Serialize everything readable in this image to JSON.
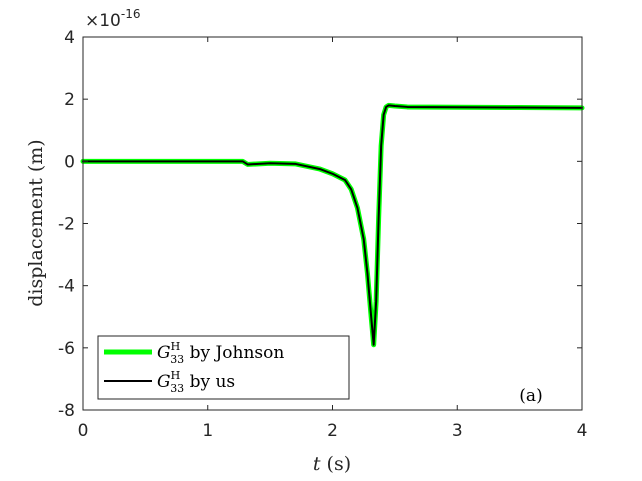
{
  "chart_data": {
    "type": "line",
    "xlabel_var": "t",
    "xlabel_unit": " (s)",
    "ylabel": "displacement (m)",
    "y_exponent_prefix": "×10",
    "y_exponent_power": "-16",
    "xlim": [
      0,
      4
    ],
    "ylim": [
      -8,
      4
    ],
    "x_ticks": [
      0,
      1,
      2,
      3,
      4
    ],
    "x_tick_labels": [
      "0",
      "1",
      "2",
      "3",
      "4"
    ],
    "y_ticks": [
      -8,
      -6,
      -4,
      -2,
      0,
      2,
      4
    ],
    "y_tick_labels": [
      "-8",
      "-6",
      "-4",
      "-2",
      "0",
      "2",
      "4"
    ],
    "grid": false,
    "legend_position": "bottom-left",
    "panel_label": "(a)",
    "series": [
      {
        "legend_symbol": "G",
        "legend_superscript": "H",
        "legend_subscript": "33",
        "legend_suffix": " by Johnson",
        "color": "#00ff00",
        "x": [
          0,
          0.5,
          1.0,
          1.28,
          1.32,
          1.5,
          1.7,
          1.9,
          2.0,
          2.1,
          2.15,
          2.2,
          2.25,
          2.28,
          2.31,
          2.33,
          2.35,
          2.37,
          2.39,
          2.41,
          2.43,
          2.45,
          2.5,
          2.6,
          3.0,
          3.5,
          4.0
        ],
        "y": [
          0.0,
          0.0,
          0.0,
          0.0,
          -0.1,
          -0.06,
          -0.08,
          -0.25,
          -0.4,
          -0.6,
          -0.9,
          -1.5,
          -2.5,
          -3.6,
          -5.0,
          -5.9,
          -4.5,
          -1.8,
          0.5,
          1.5,
          1.75,
          1.8,
          1.78,
          1.75,
          1.74,
          1.73,
          1.72
        ]
      },
      {
        "legend_symbol": "G",
        "legend_superscript": "H",
        "legend_subscript": "33",
        "legend_suffix": " by us",
        "color": "#000000",
        "x": [
          0,
          0.5,
          1.0,
          1.28,
          1.32,
          1.5,
          1.7,
          1.9,
          2.0,
          2.1,
          2.15,
          2.2,
          2.25,
          2.28,
          2.31,
          2.33,
          2.35,
          2.37,
          2.39,
          2.41,
          2.43,
          2.45,
          2.5,
          2.6,
          3.0,
          3.5,
          4.0
        ],
        "y": [
          0.0,
          0.0,
          0.0,
          0.0,
          -0.1,
          -0.06,
          -0.08,
          -0.25,
          -0.4,
          -0.6,
          -0.9,
          -1.5,
          -2.5,
          -3.6,
          -5.0,
          -5.9,
          -4.5,
          -1.8,
          0.5,
          1.5,
          1.75,
          1.8,
          1.78,
          1.75,
          1.74,
          1.73,
          1.72
        ]
      }
    ]
  }
}
